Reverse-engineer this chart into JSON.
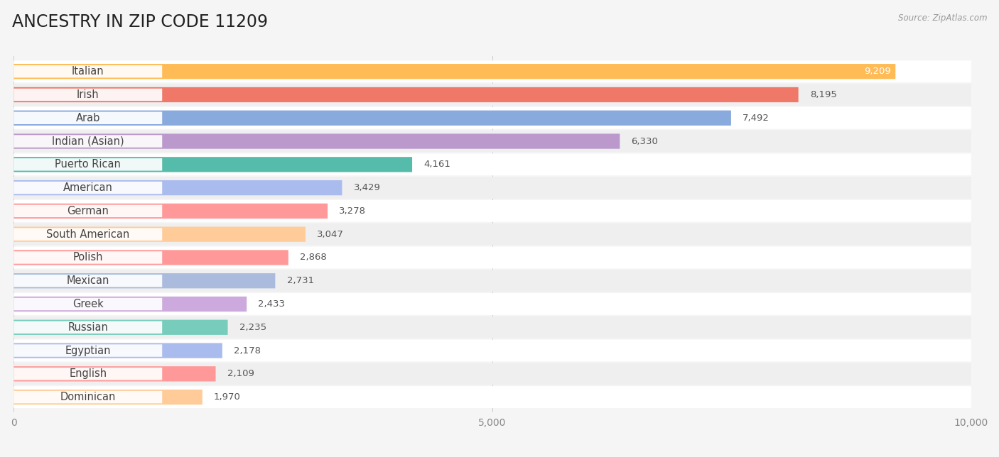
{
  "title": "ANCESTRY IN ZIP CODE 11209",
  "source": "Source: ZipAtlas.com",
  "categories": [
    "Italian",
    "Irish",
    "Arab",
    "Indian (Asian)",
    "Puerto Rican",
    "American",
    "German",
    "South American",
    "Polish",
    "Mexican",
    "Greek",
    "Russian",
    "Egyptian",
    "English",
    "Dominican"
  ],
  "values": [
    9209,
    8195,
    7492,
    6330,
    4161,
    3429,
    3278,
    3047,
    2868,
    2731,
    2433,
    2235,
    2178,
    2109,
    1970
  ],
  "bar_colors": [
    "#FFBB55",
    "#F07868",
    "#88AADD",
    "#BB99CC",
    "#55BBAA",
    "#AABBEE",
    "#FF9999",
    "#FFCC99",
    "#FF9999",
    "#AABBDD",
    "#CCAADD",
    "#77CCBB",
    "#AABBEE",
    "#FF9999",
    "#FFCC99"
  ],
  "xlim_max": 10000,
  "xticks": [
    0,
    5000,
    10000
  ],
  "xticklabels": [
    "0",
    "5,000",
    "10,000"
  ],
  "background_color": "#f5f5f5",
  "row_color_odd": "#ffffff",
  "row_color_even": "#efefef",
  "title_fontsize": 17,
  "label_fontsize": 10.5,
  "value_fontsize": 9.5
}
